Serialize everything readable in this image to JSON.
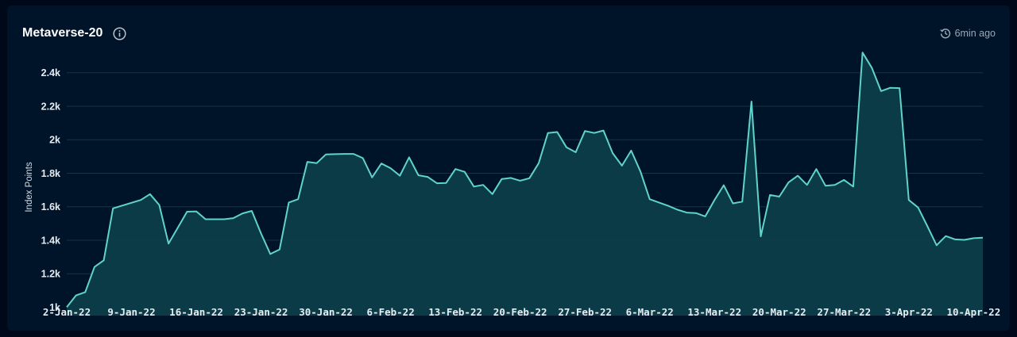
{
  "header": {
    "title": "Metaverse-20",
    "updated": "6min ago",
    "info_icon": "info-icon",
    "history_icon": "history-icon"
  },
  "colors": {
    "background": "#00091a",
    "card": "#001429",
    "line": "#5fd3cc",
    "fill": "#0d3d4a",
    "grid": "#1b3145"
  },
  "chart_data": {
    "type": "area",
    "title": "Metaverse-20",
    "xlabel": "",
    "ylabel": "Index Points",
    "grid": true,
    "xlim": [
      "2022-01-02",
      "2022-04-11"
    ],
    "ylim": [
      950,
      2550
    ],
    "yticks": [
      1000,
      1200,
      1400,
      1600,
      1800,
      2000,
      2200,
      2400
    ],
    "ytick_labels": [
      "1k",
      "1.2k",
      "1.4k",
      "1.6k",
      "1.8k",
      "2k",
      "2.2k",
      "2.4k"
    ],
    "xticks": [
      "2022-01-02",
      "2022-01-09",
      "2022-01-16",
      "2022-01-23",
      "2022-01-30",
      "2022-02-06",
      "2022-02-13",
      "2022-02-20",
      "2022-02-27",
      "2022-03-06",
      "2022-03-13",
      "2022-03-20",
      "2022-03-27",
      "2022-04-03",
      "2022-04-10"
    ],
    "xtick_labels": [
      "2-Jan-22",
      "9-Jan-22",
      "16-Jan-22",
      "23-Jan-22",
      "30-Jan-22",
      "6-Feb-22",
      "13-Feb-22",
      "20-Feb-22",
      "27-Feb-22",
      "6-Mar-22",
      "13-Mar-22",
      "20-Mar-22",
      "27-Mar-22",
      "3-Apr-22",
      "10-Apr-22"
    ],
    "series": [
      {
        "x": [
          "2022-01-02",
          "2022-01-03",
          "2022-01-04",
          "2022-01-05",
          "2022-01-06",
          "2022-01-07",
          "2022-01-10",
          "2022-01-11",
          "2022-01-12",
          "2022-01-13",
          "2022-01-14",
          "2022-01-15",
          "2022-01-16",
          "2022-01-17",
          "2022-01-18",
          "2022-01-19",
          "2022-01-20",
          "2022-01-21",
          "2022-01-22",
          "2022-01-23",
          "2022-01-24",
          "2022-01-25",
          "2022-01-26",
          "2022-01-27",
          "2022-01-28",
          "2022-01-29",
          "2022-01-30",
          "2022-01-31",
          "2022-02-01",
          "2022-02-02",
          "2022-02-03",
          "2022-02-04",
          "2022-02-05",
          "2022-02-06",
          "2022-02-07",
          "2022-02-08",
          "2022-02-09",
          "2022-02-10",
          "2022-02-11",
          "2022-02-12",
          "2022-02-13",
          "2022-02-14",
          "2022-02-15",
          "2022-02-16",
          "2022-02-17",
          "2022-02-18",
          "2022-02-19",
          "2022-02-20",
          "2022-02-21",
          "2022-02-22",
          "2022-02-23",
          "2022-02-24",
          "2022-02-25",
          "2022-02-26",
          "2022-02-27",
          "2022-02-28",
          "2022-03-01",
          "2022-03-02",
          "2022-03-03",
          "2022-03-04",
          "2022-03-05",
          "2022-03-06",
          "2022-03-07",
          "2022-03-08",
          "2022-03-09",
          "2022-03-10",
          "2022-03-11",
          "2022-03-12",
          "2022-03-13",
          "2022-03-14",
          "2022-03-15",
          "2022-03-16",
          "2022-03-17",
          "2022-03-18",
          "2022-03-19",
          "2022-03-20",
          "2022-03-21",
          "2022-03-22",
          "2022-03-23",
          "2022-03-24",
          "2022-03-25",
          "2022-03-26",
          "2022-03-27",
          "2022-03-28",
          "2022-03-29",
          "2022-03-30",
          "2022-03-31",
          "2022-04-01",
          "2022-04-02",
          "2022-04-03",
          "2022-04-04",
          "2022-04-05",
          "2022-04-06",
          "2022-04-07",
          "2022-04-08",
          "2022-04-09",
          "2022-04-10",
          "2022-04-11"
        ],
        "y": [
          1000,
          1070,
          1090,
          1240,
          1280,
          1590,
          1640,
          1675,
          1610,
          1380,
          1475,
          1570,
          1572,
          1525,
          1525,
          1525,
          1532,
          1560,
          1575,
          1440,
          1318,
          1345,
          1625,
          1645,
          1868,
          1860,
          1912,
          1914,
          1915,
          1915,
          1890,
          1775,
          1858,
          1830,
          1785,
          1895,
          1788,
          1778,
          1740,
          1742,
          1825,
          1808,
          1720,
          1730,
          1675,
          1765,
          1772,
          1755,
          1770,
          1860,
          2040,
          2046,
          1955,
          1925,
          2052,
          2040,
          2055,
          1920,
          1845,
          1935,
          1810,
          1645,
          1625,
          1605,
          1582,
          1565,
          1562,
          1542,
          1640,
          1728,
          1620,
          1630,
          2228,
          1423,
          1670,
          1660,
          1745,
          1785,
          1730,
          1825,
          1725,
          1730,
          1760,
          1720,
          2520,
          2430,
          2290,
          2310,
          2308,
          1640,
          1595,
          1485,
          1370,
          1425,
          1405,
          1402,
          1412,
          1415
        ]
      }
    ]
  }
}
